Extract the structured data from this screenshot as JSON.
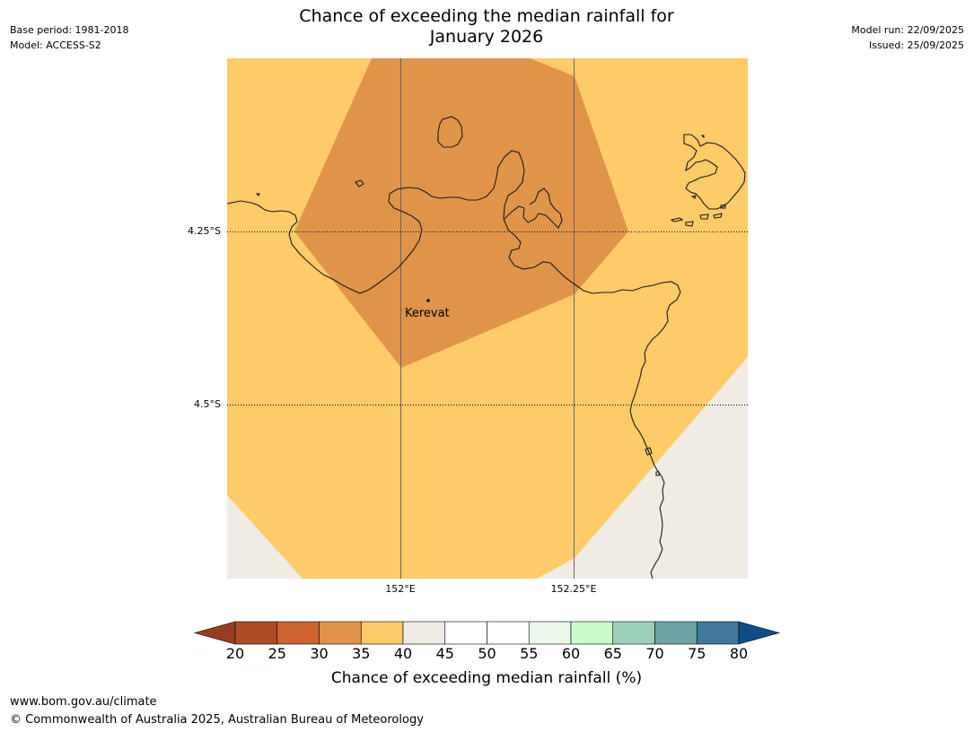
{
  "header": {
    "base_period": "Base period: 1981-2018",
    "model": "Model: ACCESS-S2",
    "model_run": "Model run: 22/09/2025",
    "issued": "Issued: 25/09/2025",
    "title_line1": "Chance of exceeding the median rainfall for",
    "title_line2": "January 2026"
  },
  "map": {
    "lat_labels": [
      "4.25°S",
      "4.5°S"
    ],
    "lon_labels": [
      "152°E",
      "152.25°E"
    ],
    "places": [
      {
        "name": "Kerevat"
      }
    ],
    "colors": {
      "band_30_35": "#e0944a",
      "band_35_40": "#fecb69",
      "band_40_45": "#f0ebe4",
      "coastline": "#1a1a1a"
    }
  },
  "colorbar": {
    "title": "Chance of exceeding median rainfall (%)",
    "ticks": [
      "20",
      "25",
      "30",
      "35",
      "40",
      "45",
      "50",
      "55",
      "60",
      "65",
      "70",
      "75",
      "80"
    ],
    "low_extend_color": "#9a3c22",
    "high_extend_color": "#0f4c89",
    "segment_colors": [
      "#b04b27",
      "#cd6431",
      "#e0944a",
      "#fecb69",
      "#f0ebe4",
      "#ffffff",
      "#ffffff",
      "#eaf7ea",
      "#c9fbc9",
      "#9ccfb9",
      "#6da5a6",
      "#3f7899"
    ]
  },
  "footer": {
    "url": "www.bom.gov.au/climate",
    "copyright": "© Commonwealth of Australia 2025, Australian Bureau of Meteorology"
  }
}
